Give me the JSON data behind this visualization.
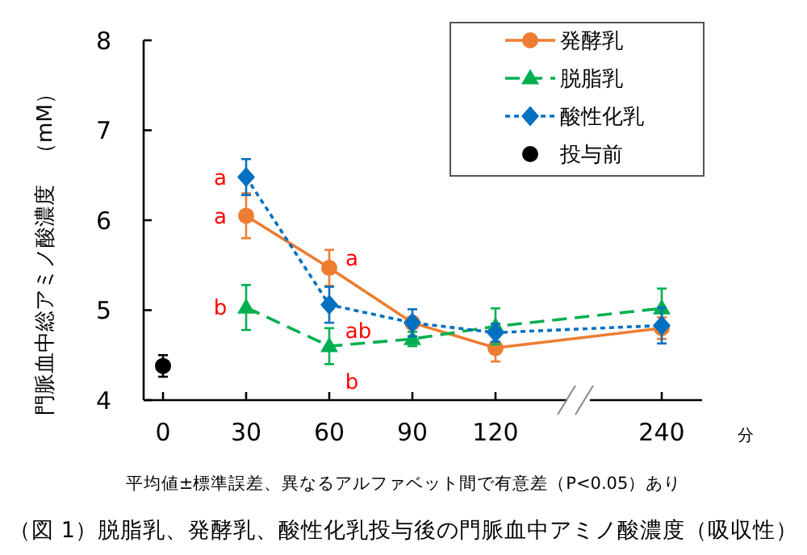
{
  "chart_data": {
    "type": "line",
    "title": "（図 1）脱脂乳、発酵乳、酸性化乳投与後の門脈血中アミノ酸濃度（吸収性）",
    "xlabel": "分",
    "ylabel": "門脈血中総アミノ酸濃度　（mM）",
    "categories": [
      "0",
      "30",
      "60",
      "90",
      "120",
      null,
      "240"
    ],
    "ylim": [
      4,
      8
    ],
    "yticks": [
      4,
      5,
      6,
      7,
      8
    ],
    "series": [
      {
        "name": "発酵乳",
        "color": "#ed7d31",
        "values": [
          null,
          6.05,
          5.47,
          4.86,
          4.58,
          null,
          4.8
        ],
        "errors": [
          null,
          0.25,
          0.2,
          null,
          0.15,
          null,
          0.12
        ],
        "marker": "circle",
        "line_style": "solid"
      },
      {
        "name": "脱脂乳",
        "color": "#00b050",
        "values": [
          null,
          5.03,
          4.6,
          4.68,
          4.82,
          null,
          5.02
        ],
        "errors": [
          null,
          0.25,
          0.2,
          0.08,
          0.2,
          null,
          0.22
        ],
        "marker": "triangle",
        "line_style": "dashed"
      },
      {
        "name": "酸性化乳",
        "color": "#0070c0",
        "values": [
          null,
          6.48,
          5.06,
          4.86,
          4.75,
          null,
          4.83
        ],
        "errors": [
          null,
          0.2,
          0.2,
          0.15,
          0.1,
          null,
          0.2
        ],
        "marker": "diamond",
        "line_style": "dotted"
      },
      {
        "name": "投与前",
        "type": "scatter",
        "color": "#000000",
        "values": [
          4.38,
          null,
          null,
          null,
          null,
          null,
          null
        ],
        "errors": [
          0.12,
          null,
          null,
          null,
          null,
          null,
          null
        ],
        "marker": "circle"
      }
    ],
    "annotations": [
      {
        "text": "a",
        "x": "30",
        "y": 6.48
      },
      {
        "text": "a",
        "x": "30",
        "y": 6.05
      },
      {
        "text": "b",
        "x": "30",
        "y": 5.03
      },
      {
        "text": "a",
        "x": "60",
        "y": 5.47
      },
      {
        "text": "ab",
        "x": "60",
        "y": 5.06
      },
      {
        "text": "b",
        "x": "60",
        "y": 4.6
      },
      "平均値±標準誤差、異なるアルファベット間で有意差（P<0.05）あり"
    ],
    "legend": "top right",
    "grid": false
  }
}
